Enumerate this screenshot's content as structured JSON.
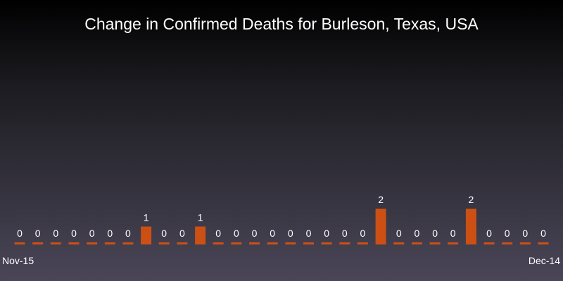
{
  "chart_data": {
    "type": "bar",
    "title": "Change in Confirmed Deaths for Burleson, Texas, USA",
    "x_tick_labels": [
      "Nov-15",
      "Dec-14"
    ],
    "values": [
      0,
      0,
      0,
      0,
      0,
      0,
      0,
      1,
      0,
      0,
      1,
      0,
      0,
      0,
      0,
      0,
      0,
      0,
      0,
      0,
      2,
      0,
      0,
      0,
      0,
      2,
      0,
      0,
      0,
      0
    ],
    "bar_color": "#cc5014",
    "background_top": "#000000",
    "background_bottom": "#4a4658",
    "text_color": "#ffffff",
    "grid": false,
    "legend": "none"
  }
}
